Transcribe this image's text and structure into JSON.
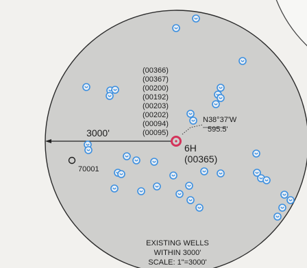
{
  "map": {
    "radius_label": "3000'",
    "subject_well": {
      "label": "6H",
      "id": "(00365)",
      "bearing": "N38°37'W",
      "distance": "595.5'",
      "stacked_ids": [
        "(00366)",
        "(00367)",
        "(00200)",
        "(00192)",
        "(00203)",
        "(00202)",
        "(00094)",
        "(00095)"
      ]
    },
    "other_well": {
      "label": "70001"
    },
    "legend": {
      "line1": "EXISTING WELLS",
      "line2": "WITHIN 3000'",
      "line3": "SCALE: 1\"=3000'"
    },
    "well_count": 45,
    "colors": {
      "background": "#f2f1ee",
      "circle_fill": "#cfcfcd",
      "circle_stroke": "#2a2a2a",
      "well_blue": "#3b8fe0",
      "subject_red": "#d4335a",
      "text": "#1c1c1c"
    }
  }
}
